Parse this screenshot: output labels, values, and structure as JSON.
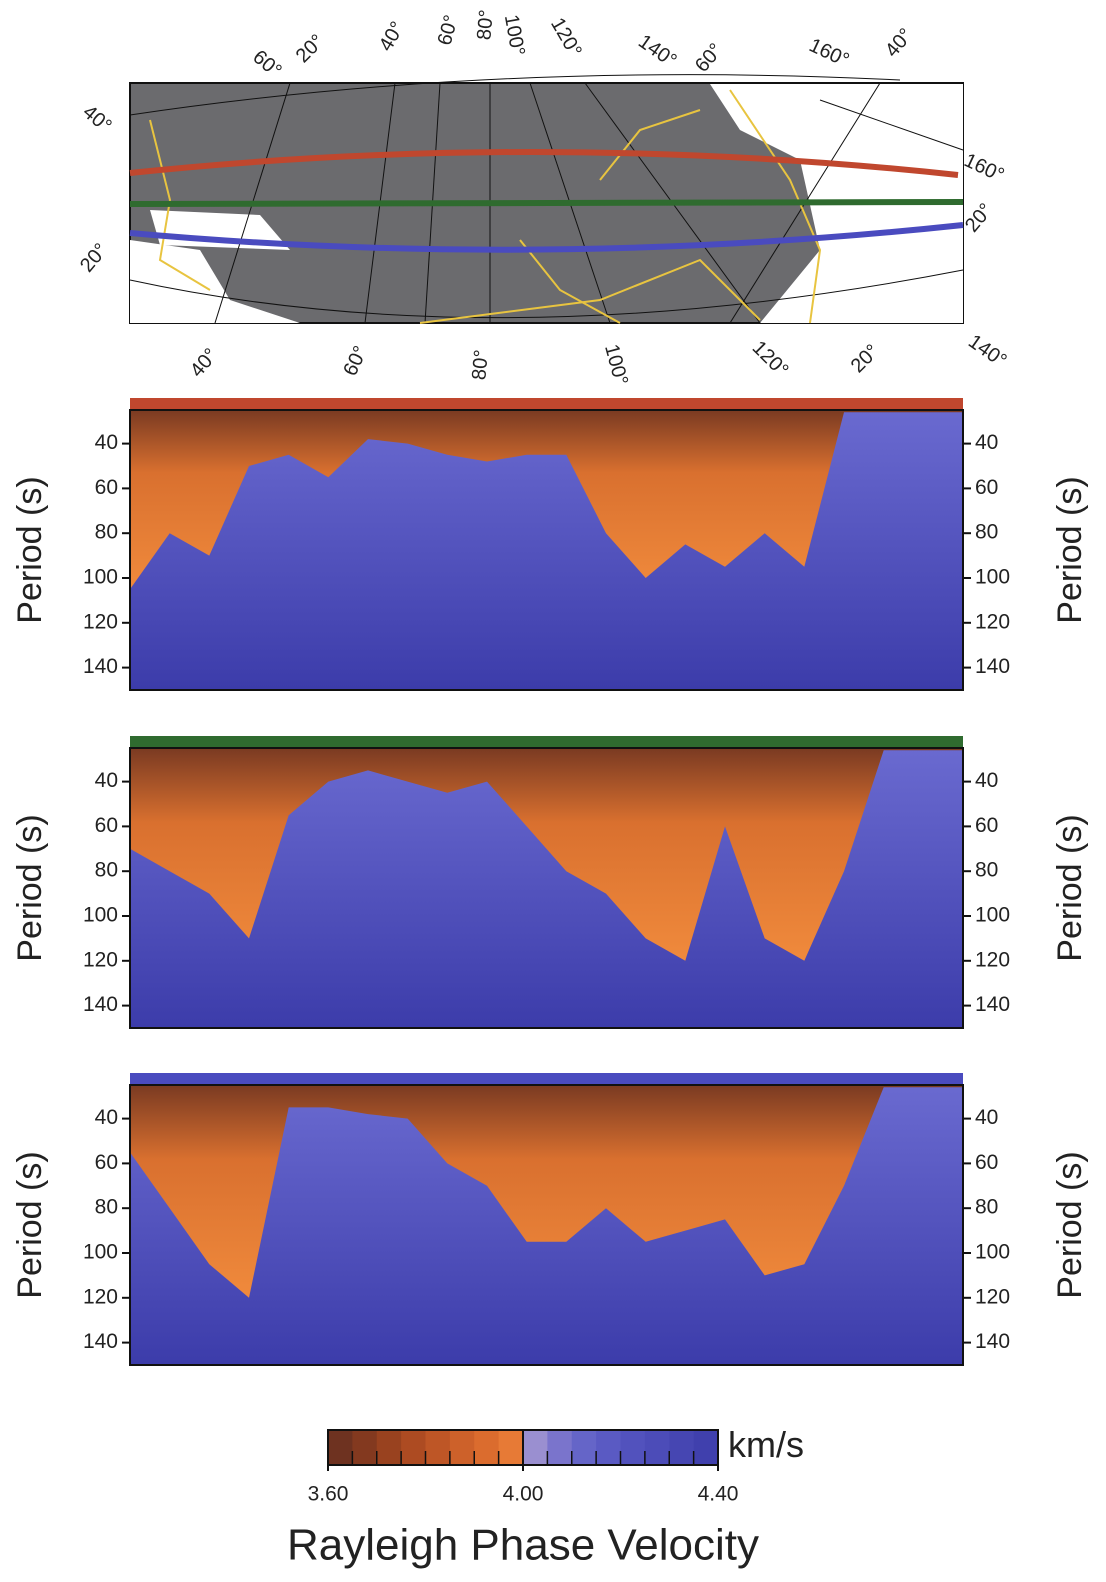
{
  "map": {
    "top_labels": [
      "60°",
      "20°",
      "40°",
      "60°",
      "80°",
      "100°",
      "120°",
      "140°",
      "60°",
      "160°",
      "40°"
    ],
    "left_labels": [
      "40°",
      "20°"
    ],
    "right_labels": [
      "160°",
      "20°"
    ],
    "bottom_labels": [
      "40°",
      "60°",
      "80°",
      "100°",
      "120°",
      "20°",
      "140°"
    ]
  },
  "panels": [
    {
      "ylabel": "Period (s)",
      "ylim": [
        25,
        150
      ],
      "yticks": [
        40,
        60,
        80,
        100,
        120,
        140
      ],
      "color": "#c0472e",
      "boundary": [
        105,
        80,
        90,
        50,
        45,
        55,
        38,
        40,
        45,
        48,
        45,
        45,
        80,
        100,
        85,
        95,
        80,
        95,
        26,
        26,
        26,
        26
      ]
    },
    {
      "ylabel": "Period (s)",
      "ylim": [
        25,
        150
      ],
      "yticks": [
        40,
        60,
        80,
        100,
        120,
        140
      ],
      "color": "#2f6b2f",
      "boundary": [
        70,
        80,
        90,
        110,
        55,
        40,
        35,
        40,
        45,
        40,
        60,
        80,
        90,
        110,
        120,
        60,
        110,
        120,
        80,
        26,
        26,
        26
      ]
    },
    {
      "ylabel": "Period (s)",
      "ylim": [
        25,
        150
      ],
      "yticks": [
        40,
        60,
        80,
        100,
        120,
        140
      ],
      "color": "#4a4bbf",
      "boundary": [
        55,
        80,
        105,
        120,
        35,
        35,
        38,
        40,
        60,
        70,
        95,
        95,
        80,
        95,
        90,
        85,
        110,
        105,
        70,
        26,
        26,
        26
      ]
    }
  ],
  "colorbar": {
    "lim": [
      3.6,
      4.4
    ],
    "ticks": [
      {
        "value": 3.6,
        "label": "3.60"
      },
      {
        "value": 4.0,
        "label": "4.00"
      },
      {
        "value": 4.4,
        "label": "4.40"
      }
    ],
    "unit": "km/s",
    "title": "Rayleigh Phase Velocity"
  }
}
